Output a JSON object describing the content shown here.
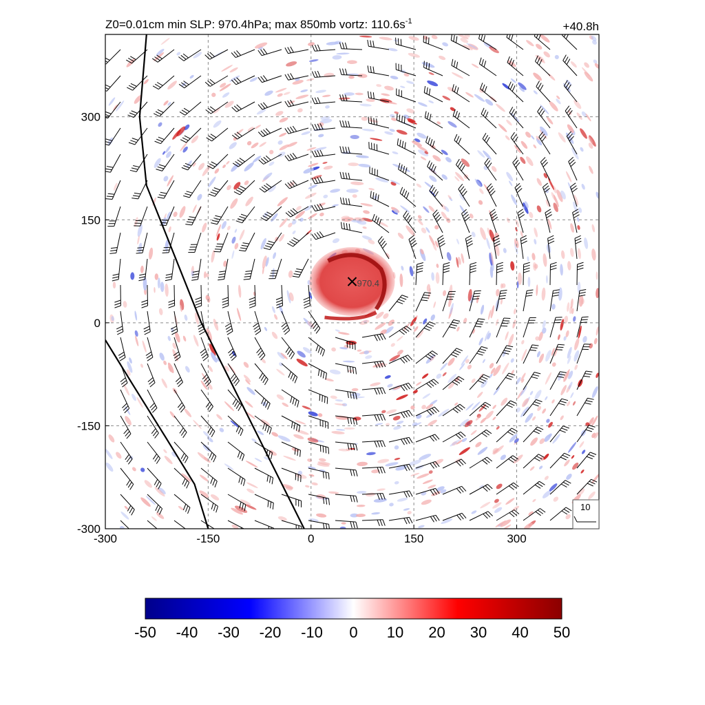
{
  "chart_data": {
    "type": "heatmap",
    "title": "Z0=0.01cm  min SLP: 970.4hPa; max 850mb vortz: 110.6s",
    "title_superscript": "-1",
    "time_label": "+40.8h",
    "xlim": [
      -300,
      420
    ],
    "ylim": [
      -300,
      420
    ],
    "x_ticks": [
      "-300",
      "-150",
      "0",
      "150",
      "300"
    ],
    "y_ticks": [
      "300",
      "150",
      "0",
      "-150",
      "-300"
    ],
    "grid": true,
    "center_marker": {
      "x": 60,
      "y": 60,
      "label": "970.4"
    },
    "colorbar": {
      "min": -50,
      "max": 50,
      "ticks": [
        "-50",
        "-40",
        "-30",
        "-20",
        "-10",
        "0",
        "10",
        "20",
        "30",
        "40",
        "50"
      ],
      "colors": [
        "#00008b",
        "#0000ff",
        "#ffffff",
        "#ff0000",
        "#8b0000"
      ]
    },
    "reference_vector_label": "10",
    "coastlines": [
      [
        [
          -240,
          420
        ],
        [
          -250,
          300
        ],
        [
          -240,
          200
        ],
        [
          -200,
          100
        ],
        [
          -160,
          0
        ],
        [
          -110,
          -100
        ],
        [
          -60,
          -200
        ],
        [
          -10,
          -300
        ]
      ],
      [
        [
          -300,
          -25
        ],
        [
          -260,
          -90
        ],
        [
          -210,
          -170
        ],
        [
          -170,
          -235
        ],
        [
          -150,
          -300
        ]
      ]
    ]
  }
}
